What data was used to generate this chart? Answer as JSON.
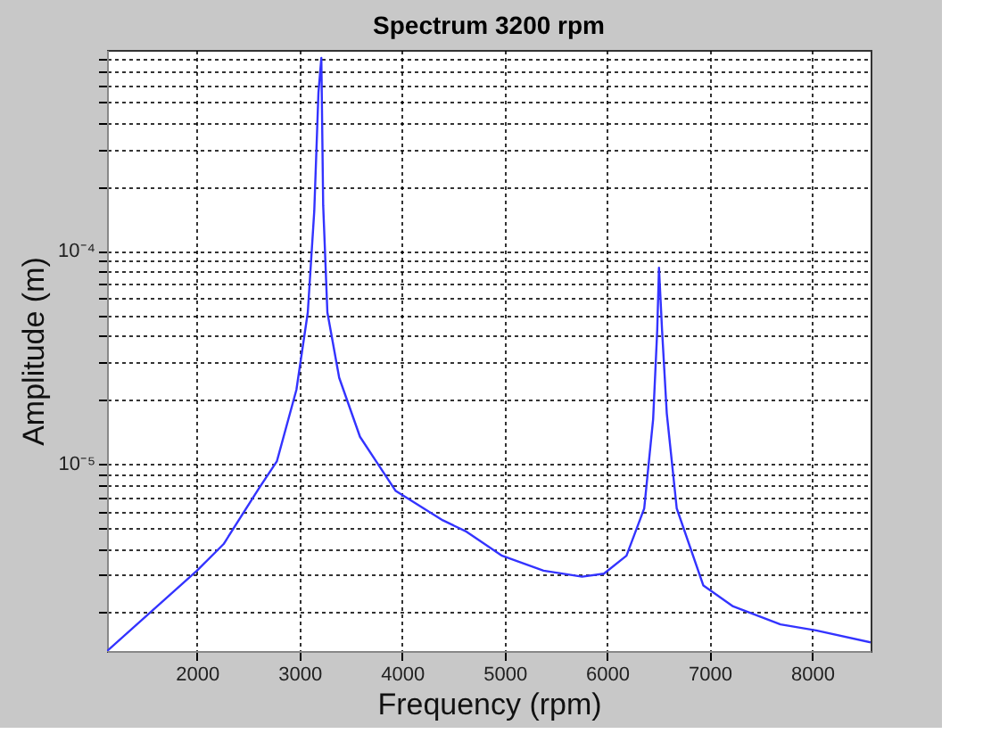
{
  "chart_data": {
    "type": "line",
    "title": "Spectrum 3200 rpm",
    "xlabel": "Frequency (rpm)",
    "ylabel": "Amplitude (m)",
    "x": [
      1123,
      2000,
      2260,
      2607,
      2780,
      2970,
      3081,
      3144,
      3185,
      3213,
      3231,
      3272,
      3387,
      3590,
      3936,
      4398,
      4629,
      4976,
      5380,
      5756,
      5969,
      6189,
      6362,
      6449,
      6489,
      6506,
      6536,
      6582,
      6679,
      6939,
      7229,
      7691,
      8038,
      8570
    ],
    "series": [
      {
        "color": "#3333ff",
        "values": [
          1.32e-06,
          3.15e-06,
          4.2e-06,
          7.7e-06,
          1.03e-05,
          2.23e-05,
          5.15e-05,
          0.000154,
          0.000556,
          0.000807,
          0.000164,
          5.15e-05,
          2.54e-05,
          1.34e-05,
          7.48e-06,
          5.43e-06,
          4.8e-06,
          3.7e-06,
          3.15e-06,
          2.95e-06,
          3.05e-06,
          3.7e-06,
          6.17e-06,
          1.62e-05,
          4.25e-05,
          8.34e-05,
          4.25e-05,
          1.73e-05,
          6.18e-06,
          2.68e-06,
          2.14e-06,
          1.76e-06,
          1.65e-06,
          1.45e-06
        ]
      }
    ],
    "xlim": [
      1123,
      8570
    ],
    "xticks": [
      2000,
      3000,
      4000,
      5000,
      6000,
      7000,
      8000
    ],
    "ylim": [
      1.32e-06,
      0.00088
    ],
    "log": true,
    "yticks": [
      {
        "value": 2e-06,
        "label": null
      },
      {
        "value": 3e-06,
        "label": null
      },
      {
        "value": 4e-06,
        "label": null
      },
      {
        "value": 5e-06,
        "label": null
      },
      {
        "value": 6e-06,
        "label": null
      },
      {
        "value": 7e-06,
        "label": null
      },
      {
        "value": 8e-06,
        "label": null
      },
      {
        "value": 9e-06,
        "label": null
      },
      {
        "value": 1e-05,
        "label": "10⁻⁵"
      },
      {
        "value": 2e-05,
        "label": null
      },
      {
        "value": 3e-05,
        "label": null
      },
      {
        "value": 4e-05,
        "label": null
      },
      {
        "value": 5e-05,
        "label": null
      },
      {
        "value": 6e-05,
        "label": null
      },
      {
        "value": 7e-05,
        "label": null
      },
      {
        "value": 8e-05,
        "label": null
      },
      {
        "value": 9e-05,
        "label": null
      },
      {
        "value": 0.0001,
        "label": "10⁻⁴"
      },
      {
        "value": 0.0002,
        "label": null
      },
      {
        "value": 0.0003,
        "label": null
      },
      {
        "value": 0.0004,
        "label": null
      },
      {
        "value": 0.0005,
        "label": null
      },
      {
        "value": 0.0006,
        "label": null
      },
      {
        "value": 0.0007,
        "label": null
      },
      {
        "value": 0.0008,
        "label": null
      }
    ],
    "grid": true,
    "marker": "none",
    "line_style": "solid",
    "legend": false
  }
}
